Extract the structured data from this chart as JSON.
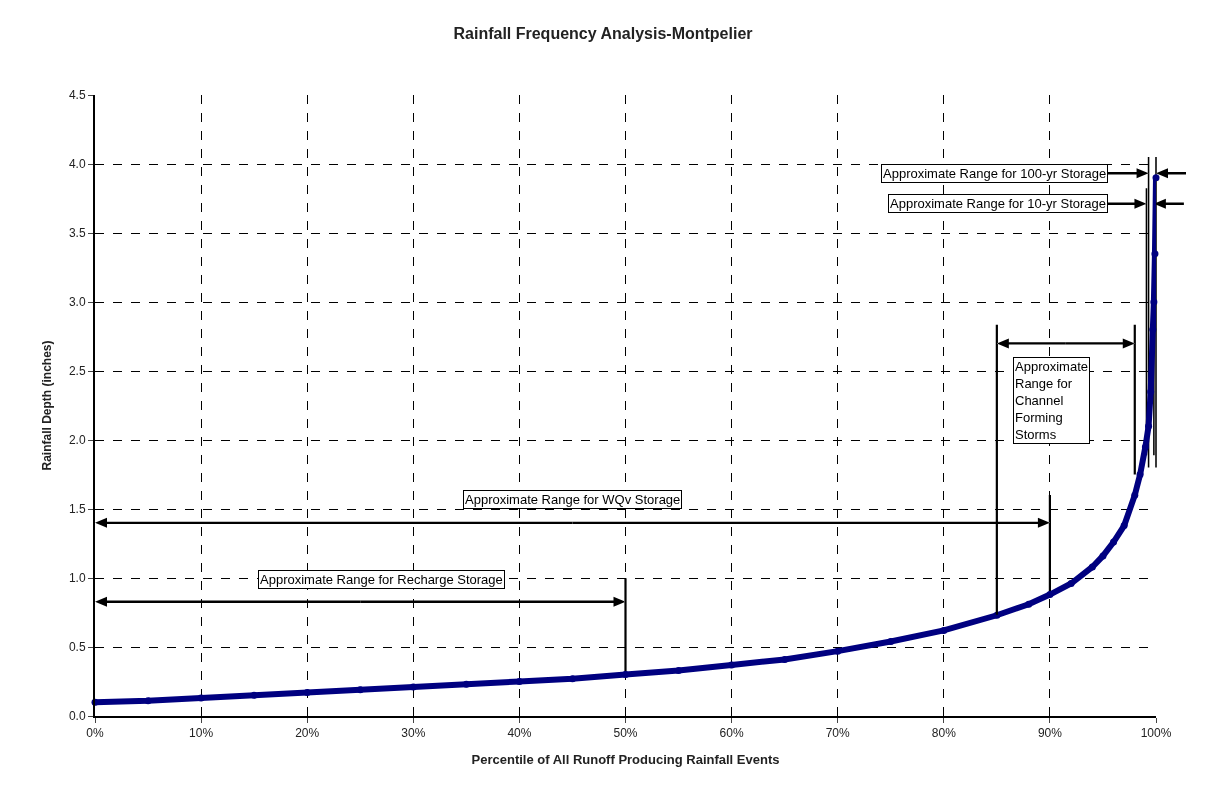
{
  "chart_data": {
    "type": "line",
    "title": "Rainfall Frequency Analysis-Montpelier",
    "xlabel": "Percentile of All Runoff Producing Rainfall Events",
    "ylabel": "Rainfall Depth (inches)",
    "x": [
      0,
      5,
      10,
      15,
      20,
      25,
      30,
      35,
      40,
      45,
      50,
      55,
      60,
      65,
      70,
      75,
      80,
      85,
      88,
      90,
      92,
      94,
      95,
      96,
      97,
      98,
      98.5,
      99,
      99.3,
      99.5,
      99.7,
      99.8,
      99.9,
      100
    ],
    "series": [
      {
        "color": "#000080",
        "values": [
          0.1,
          0.11,
          0.13,
          0.15,
          0.17,
          0.19,
          0.21,
          0.23,
          0.25,
          0.27,
          0.3,
          0.33,
          0.37,
          0.41,
          0.47,
          0.54,
          0.62,
          0.73,
          0.81,
          0.88,
          0.96,
          1.08,
          1.16,
          1.26,
          1.38,
          1.6,
          1.75,
          1.95,
          2.1,
          2.35,
          2.8,
          3.0,
          3.35,
          3.9
        ]
      }
    ],
    "marker": "circle",
    "line_style": "solid",
    "xlim": [
      0,
      100
    ],
    "ylim": [
      0,
      4.5
    ],
    "xticks": [
      {
        "value": 0,
        "label": "0%"
      },
      {
        "value": 10,
        "label": "10%"
      },
      {
        "value": 20,
        "label": "20%"
      },
      {
        "value": 30,
        "label": "30%"
      },
      {
        "value": 40,
        "label": "40%"
      },
      {
        "value": 50,
        "label": "50%"
      },
      {
        "value": 60,
        "label": "60%"
      },
      {
        "value": 70,
        "label": "70%"
      },
      {
        "value": 80,
        "label": "80%"
      },
      {
        "value": 90,
        "label": "90%"
      },
      {
        "value": 100,
        "label": "100%"
      }
    ],
    "yticks": [
      {
        "value": 0,
        "label": "0.0"
      },
      {
        "value": 0.5,
        "label": "0.5"
      },
      {
        "value": 1,
        "label": "1.0"
      },
      {
        "value": 1.5,
        "label": "1.5"
      },
      {
        "value": 2,
        "label": "2.0"
      },
      {
        "value": 2.5,
        "label": "2.5"
      },
      {
        "value": 3,
        "label": "3.0"
      },
      {
        "value": 3.5,
        "label": "3.5"
      },
      {
        "value": 4,
        "label": "4.0"
      },
      {
        "value": 4.5,
        "label": "4.5"
      }
    ],
    "grid": true,
    "annotations": [
      "Approximate Range for Recharge Storage",
      "Approximate Range for WQv Storage",
      "Approximate\nRange for\nChannel\nForming\nStorms",
      "Approximate Range for 100-yr Storage",
      "Approximate Range for 10-yr Storage"
    ]
  }
}
